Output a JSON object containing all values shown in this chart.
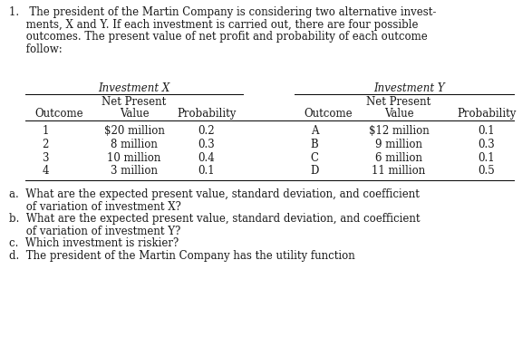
{
  "bg_color": "#ffffff",
  "text_color": "#1a1a1a",
  "inv_x_header": "Investment X",
  "inv_y_header": "Investment Y",
  "inv_x_rows": [
    [
      "1",
      "$20 million",
      "0.2"
    ],
    [
      "2",
      "8 million",
      "0.3"
    ],
    [
      "3",
      "10 million",
      "0.4"
    ],
    [
      "4",
      "3 million",
      "0.1"
    ]
  ],
  "inv_y_rows": [
    [
      "A",
      "$12 million",
      "0.1"
    ],
    [
      "B",
      "9 million",
      "0.3"
    ],
    [
      "C",
      "6 million",
      "0.1"
    ],
    [
      "D",
      "11 million",
      "0.5"
    ]
  ],
  "intro_lines": [
    "1.   The president of the Martin Company is considering two alternative invest-",
    "     ments, X and Y. If each investment is carried out, there are four possible",
    "     outcomes. The present value of net profit and probability of each outcome",
    "     follow:"
  ],
  "q_lines": [
    "a.  What are the expected present value, standard deviation, and coefficient",
    "     of variation of investment X?",
    "b.  What are the expected present value, standard deviation, and coefficient",
    "     of variation of investment Y?",
    "c.  Which investment is riskier?",
    "d.  The president of the Martin Company has the utility function"
  ],
  "font_size": 8.5,
  "fig_w": 5.87,
  "fig_h": 3.72,
  "dpi": 100
}
